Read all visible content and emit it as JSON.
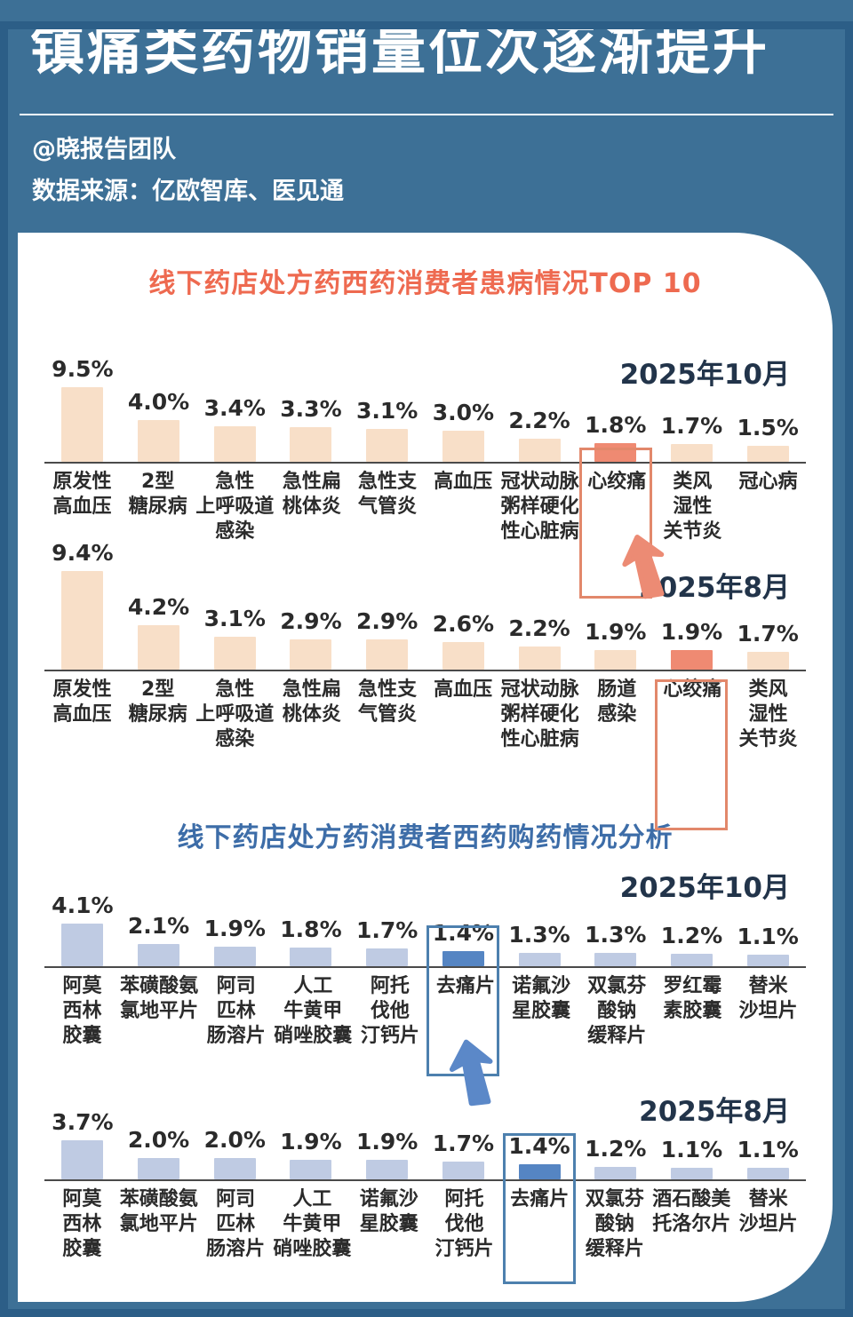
{
  "header": {
    "title": "镇痛类药物销量位次逐渐提升",
    "byline": "@晓报告团队",
    "source": "数据来源：亿欧智库、医见通"
  },
  "colors": {
    "background": "#3d7096",
    "frame_edge": "#2c5e87",
    "card": "#ffffff",
    "section1_accent": "#ee6a50",
    "section2_accent": "#3d6da8",
    "date_text": "#22344a",
    "axis": "#4a4a4a",
    "label_text": "#2b2b2b",
    "peach_bar": "#f8dfc8",
    "coral_highlight_bar": "#ef8a72",
    "orange_box": "#e2886b",
    "light_blue_bar": "#bfcbe3",
    "blue_highlight_bar": "#5585c3",
    "blue_box": "#4d80ae"
  },
  "sections": [
    {
      "title": "线下药店处方药西药消费者患病情况TOP 10",
      "accent": "#ee6a50"
    },
    {
      "title": "线下药店处方药消费者西药购药情况分析",
      "accent": "#3d6da8"
    }
  ],
  "chart_data": [
    {
      "type": "bar",
      "title": "线下药店处方药西药消费者患病情况TOP 10",
      "period": "2025年10月",
      "unit": "%",
      "xlabel": "",
      "ylabel": "",
      "categories": [
        "原发性\n高血压",
        "2型\n糖尿病",
        "急性\n上呼吸道\n感染",
        "急性扁\n桃体炎",
        "急性支\n气管炎",
        "高血压",
        "冠状动脉\n粥样硬化\n性心脏病",
        "心绞痛",
        "类风\n湿性\n关节炎",
        "冠心病"
      ],
      "values": [
        9.5,
        4.0,
        3.4,
        3.3,
        3.1,
        3.0,
        2.2,
        1.8,
        1.7,
        1.5
      ],
      "value_labels": [
        "9.5%",
        "4.0%",
        "3.4%",
        "3.3%",
        "3.1%",
        "3.0%",
        "2.2%",
        "1.8%",
        "1.7%",
        "1.5%"
      ],
      "highlight_index": 7,
      "highlight_category": "心绞痛",
      "bar_color": "#f8dfc8",
      "highlight_bar_color": "#ef8a72",
      "highlight_box_color": "#e2886b"
    },
    {
      "type": "bar",
      "title": "线下药店处方药西药消费者患病情况TOP 10",
      "period": "2025年8月",
      "unit": "%",
      "xlabel": "",
      "ylabel": "",
      "categories": [
        "原发性\n高血压",
        "2型\n糖尿病",
        "急性\n上呼吸道\n感染",
        "急性扁\n桃体炎",
        "急性支\n气管炎",
        "高血压",
        "冠状动脉\n粥样硬化\n性心脏病",
        "肠道\n感染",
        "心绞痛",
        "类风\n湿性\n关节炎"
      ],
      "values": [
        9.4,
        4.2,
        3.1,
        2.9,
        2.9,
        2.6,
        2.2,
        1.9,
        1.9,
        1.7
      ],
      "value_labels": [
        "9.4%",
        "4.2%",
        "3.1%",
        "2.9%",
        "2.9%",
        "2.6%",
        "2.2%",
        "1.9%",
        "1.9%",
        "1.7%"
      ],
      "highlight_index": 8,
      "highlight_category": "心绞痛",
      "bar_color": "#f8dfc8",
      "highlight_bar_color": "#ef8a72",
      "highlight_box_color": "#e2886b"
    },
    {
      "type": "bar",
      "title": "线下药店处方药消费者西药购药情况分析",
      "period": "2025年10月",
      "unit": "%",
      "xlabel": "",
      "ylabel": "",
      "categories": [
        "阿莫\n西林\n胶囊",
        "苯磺酸氨\n氯地平片",
        "阿司\n匹林\n肠溶片",
        "人工\n牛黄甲\n硝唑胶囊",
        "阿托\n伐他\n汀钙片",
        "去痛片",
        "诺氟沙\n星胶囊",
        "双氯芬\n酸钠\n缓释片",
        "罗红霉\n素胶囊",
        "替米\n沙坦片"
      ],
      "values": [
        4.1,
        2.1,
        1.9,
        1.8,
        1.7,
        1.4,
        1.3,
        1.3,
        1.2,
        1.1
      ],
      "value_labels": [
        "4.1%",
        "2.1%",
        "1.9%",
        "1.8%",
        "1.7%",
        "1.4%",
        "1.3%",
        "1.3%",
        "1.2%",
        "1.1%"
      ],
      "highlight_index": 5,
      "highlight_category": "去痛片",
      "bar_color": "#bfcbe3",
      "highlight_bar_color": "#5585c3",
      "highlight_box_color": "#4d80ae"
    },
    {
      "type": "bar",
      "title": "线下药店处方药消费者西药购药情况分析",
      "period": "2025年8月",
      "unit": "%",
      "xlabel": "",
      "ylabel": "",
      "categories": [
        "阿莫\n西林\n胶囊",
        "苯磺酸氨\n氯地平片",
        "阿司\n匹林\n肠溶片",
        "人工\n牛黄甲\n硝唑胶囊",
        "诺氟沙\n星胶囊",
        "阿托\n伐他\n汀钙片",
        "去痛片",
        "双氯芬\n酸钠\n缓释片",
        "酒石酸美\n托洛尔片",
        "替米\n沙坦片"
      ],
      "values": [
        3.7,
        2.0,
        2.0,
        1.9,
        1.9,
        1.7,
        1.4,
        1.2,
        1.1,
        1.1
      ],
      "value_labels": [
        "3.7%",
        "2.0%",
        "2.0%",
        "1.9%",
        "1.9%",
        "1.7%",
        "1.4%",
        "1.2%",
        "1.1%",
        "1.1%"
      ],
      "highlight_index": 6,
      "highlight_category": "去痛片",
      "bar_color": "#bfcbe3",
      "highlight_bar_color": "#5585c3",
      "highlight_box_color": "#4d80ae"
    }
  ],
  "arrows": [
    {
      "direction": "up",
      "color": "#ec8b74"
    },
    {
      "direction": "up",
      "color": "#5b88c8"
    }
  ]
}
